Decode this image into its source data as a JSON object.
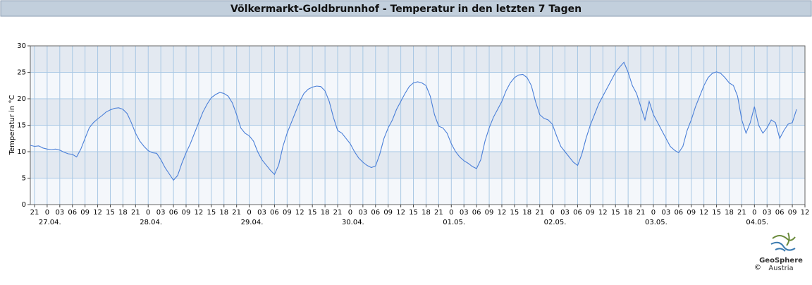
{
  "header": {
    "title": "Völkermarkt-Goldbrunnhof - Temperatur in den letzten 7 Tagen"
  },
  "chart_data": {
    "type": "line",
    "y_label": "Temperatur in °C",
    "x": [
      -4,
      -3,
      -2,
      -1,
      0,
      1,
      2,
      3,
      4,
      5,
      6,
      7,
      8,
      9,
      10,
      11,
      12,
      13,
      14,
      15,
      16,
      17,
      18,
      19,
      20,
      21,
      22,
      23,
      24,
      25,
      26,
      27,
      28,
      29,
      30,
      31,
      32,
      33,
      34,
      35,
      36,
      37,
      38,
      39,
      40,
      41,
      42,
      43,
      44,
      45,
      46,
      47,
      48,
      49,
      50,
      51,
      52,
      53,
      54,
      55,
      56,
      57,
      58,
      59,
      60,
      61,
      62,
      63,
      64,
      65,
      66,
      67,
      68,
      69,
      70,
      71,
      72,
      73,
      74,
      75,
      76,
      77,
      78,
      79,
      80,
      81,
      82,
      83,
      84,
      85,
      86,
      87,
      88,
      89,
      90,
      91,
      92,
      93,
      94,
      95,
      96,
      97,
      98,
      99,
      100,
      101,
      102,
      103,
      104,
      105,
      106,
      107,
      108,
      109,
      110,
      111,
      112,
      113,
      114,
      115,
      116,
      117,
      118,
      119,
      120,
      121,
      122,
      123,
      124,
      125,
      126,
      127,
      128,
      129,
      130,
      131,
      132,
      133,
      134,
      135,
      136,
      137,
      138,
      139,
      140,
      141,
      142,
      143,
      144,
      145,
      146,
      147,
      148,
      149,
      150,
      151,
      152,
      153,
      154,
      155,
      156,
      157,
      158,
      159,
      160,
      161,
      162,
      163,
      164,
      165,
      166,
      167,
      168,
      169,
      170,
      171,
      172,
      173,
      174,
      175,
      176,
      177,
      178
    ],
    "series": [
      {
        "color": "#4a7fd8",
        "values": [
          11.2,
          11,
          11.1,
          10.7,
          10.5,
          10.4,
          10.5,
          10.3,
          9.9,
          9.6,
          9.5,
          9.0,
          10.5,
          12.5,
          14.5,
          15.5,
          16.2,
          16.8,
          17.5,
          17.9,
          18.2,
          18.3,
          18.0,
          17.2,
          15.5,
          13.5,
          12.0,
          11.0,
          10.2,
          9.8,
          9.7,
          8.5,
          7.0,
          5.8,
          4.6,
          5.5,
          7.8,
          9.8,
          11.5,
          13.5,
          15.5,
          17.5,
          19.0,
          20.2,
          20.8,
          21.2,
          21.0,
          20.5,
          19.2,
          17.0,
          14.5,
          13.5,
          13.0,
          12.0,
          10.0,
          8.5,
          7.5,
          6.5,
          5.7,
          7.5,
          11.0,
          13.5,
          15.5,
          17.5,
          19.5,
          21.0,
          21.8,
          22.2,
          22.4,
          22.3,
          21.5,
          19.5,
          16.5,
          14.0,
          13.5,
          12.5,
          11.5,
          10.0,
          8.8,
          8.0,
          7.4,
          7.0,
          7.3,
          9.5,
          12.5,
          14.5,
          16.0,
          18.0,
          19.5,
          21.0,
          22.3,
          23.0,
          23.2,
          23.0,
          22.5,
          20.5,
          17.0,
          14.8,
          14.5,
          13.5,
          11.5,
          10.0,
          9.0,
          8.3,
          7.8,
          7.2,
          6.8,
          8.5,
          12.0,
          14.5,
          16.5,
          18.0,
          19.5,
          21.5,
          23.0,
          24.0,
          24.5,
          24.6,
          24.0,
          22.5,
          19.5,
          17.0,
          16.3,
          16.0,
          15.2,
          13.0,
          11.0,
          10.0,
          9.0,
          8.0,
          7.4,
          9.5,
          12.5,
          15.0,
          17.0,
          19.0,
          20.5,
          22.0,
          23.5,
          25.0,
          26.0,
          26.9,
          25.0,
          22.5,
          21.0,
          18.5,
          16.0,
          19.5,
          17.0,
          15.5,
          14.0,
          12.5,
          11.0,
          10.3,
          9.8,
          11.0,
          14.0,
          16.0,
          18.5,
          20.5,
          22.5,
          24.0,
          24.8,
          25.1,
          24.8,
          24.0,
          23.0,
          22.5,
          20.5,
          16.0,
          13.5,
          15.5,
          18.5,
          15.0,
          13.5,
          14.5,
          16.0,
          15.5,
          12.5,
          14.0,
          15.2,
          15.5,
          18.0
        ]
      }
    ],
    "xlim": [
      -4,
      180
    ],
    "xticks": [
      {
        "value": -3,
        "label": "21"
      },
      {
        "value": 0,
        "label": "0"
      },
      {
        "value": 3,
        "label": "03"
      },
      {
        "value": 6,
        "label": "06"
      },
      {
        "value": 9,
        "label": "09"
      },
      {
        "value": 12,
        "label": "12"
      },
      {
        "value": 15,
        "label": "15"
      },
      {
        "value": 18,
        "label": "18"
      },
      {
        "value": 21,
        "label": "21"
      },
      {
        "value": 24,
        "label": "0"
      },
      {
        "value": 27,
        "label": "03"
      },
      {
        "value": 30,
        "label": "06"
      },
      {
        "value": 33,
        "label": "09"
      },
      {
        "value": 36,
        "label": "12"
      },
      {
        "value": 39,
        "label": "15"
      },
      {
        "value": 42,
        "label": "18"
      },
      {
        "value": 45,
        "label": "21"
      },
      {
        "value": 48,
        "label": "0"
      },
      {
        "value": 51,
        "label": "03"
      },
      {
        "value": 54,
        "label": "06"
      },
      {
        "value": 57,
        "label": "09"
      },
      {
        "value": 60,
        "label": "12"
      },
      {
        "value": 63,
        "label": "15"
      },
      {
        "value": 66,
        "label": "18"
      },
      {
        "value": 69,
        "label": "21"
      },
      {
        "value": 72,
        "label": "0"
      },
      {
        "value": 75,
        "label": "03"
      },
      {
        "value": 78,
        "label": "06"
      },
      {
        "value": 81,
        "label": "09"
      },
      {
        "value": 84,
        "label": "12"
      },
      {
        "value": 87,
        "label": "15"
      },
      {
        "value": 90,
        "label": "18"
      },
      {
        "value": 93,
        "label": "21"
      },
      {
        "value": 96,
        "label": "0"
      },
      {
        "value": 99,
        "label": "03"
      },
      {
        "value": 102,
        "label": "06"
      },
      {
        "value": 105,
        "label": "09"
      },
      {
        "value": 108,
        "label": "12"
      },
      {
        "value": 111,
        "label": "15"
      },
      {
        "value": 114,
        "label": "18"
      },
      {
        "value": 117,
        "label": "21"
      },
      {
        "value": 120,
        "label": "0"
      },
      {
        "value": 123,
        "label": "03"
      },
      {
        "value": 126,
        "label": "06"
      },
      {
        "value": 129,
        "label": "09"
      },
      {
        "value": 132,
        "label": "12"
      },
      {
        "value": 135,
        "label": "15"
      },
      {
        "value": 138,
        "label": "18"
      },
      {
        "value": 141,
        "label": "21"
      },
      {
        "value": 144,
        "label": "0"
      },
      {
        "value": 147,
        "label": "03"
      },
      {
        "value": 150,
        "label": "06"
      },
      {
        "value": 153,
        "label": "09"
      },
      {
        "value": 156,
        "label": "12"
      },
      {
        "value": 159,
        "label": "15"
      },
      {
        "value": 162,
        "label": "18"
      },
      {
        "value": 165,
        "label": "21"
      },
      {
        "value": 168,
        "label": "0"
      },
      {
        "value": 171,
        "label": "03"
      },
      {
        "value": 174,
        "label": "06"
      },
      {
        "value": 177,
        "label": "09"
      },
      {
        "value": 180,
        "label": "12"
      }
    ],
    "date_labels": [
      {
        "value": 0,
        "label": "27.04."
      },
      {
        "value": 24,
        "label": "28.04."
      },
      {
        "value": 48,
        "label": "29.04."
      },
      {
        "value": 72,
        "label": "30.04."
      },
      {
        "value": 96,
        "label": "01.05."
      },
      {
        "value": 120,
        "label": "02.05."
      },
      {
        "value": 144,
        "label": "03.05."
      },
      {
        "value": 168,
        "label": "04.05."
      }
    ],
    "ylim": [
      0,
      30
    ],
    "yticks": [
      0,
      5,
      10,
      15,
      20,
      25,
      30
    ],
    "grid": true
  },
  "logo": {
    "copyright": "©",
    "name": "GeoSphere",
    "sub": "Austria"
  }
}
